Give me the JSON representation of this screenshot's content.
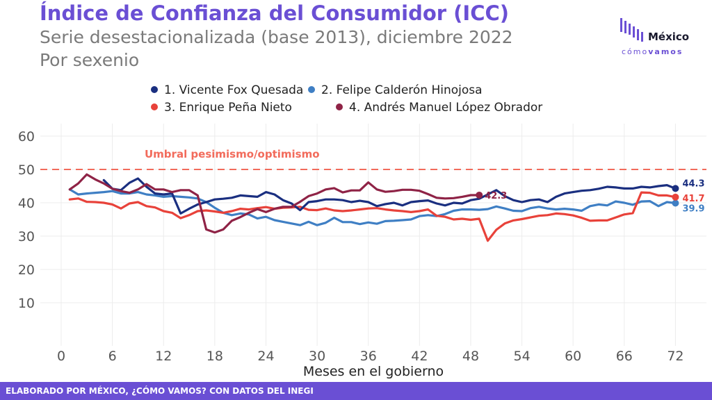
{
  "header": {
    "title": "Índice de Confianza del Consumidor (ICC)",
    "subtitle": "Serie desestacionalizada (base 2013), diciembre 2022",
    "subtitle2": "Por sexenio"
  },
  "logo": {
    "name": "México",
    "tag_part1": "cómo",
    "tag_part2": "vamos"
  },
  "footer": {
    "text": "ELABORADO POR MÉXICO, ¿CÓMO VAMOS? CON DATOS DEL INEGI"
  },
  "colors": {
    "brand": "#6a4fd4",
    "fox": "#1a2f80",
    "calderon": "#3f7fc4",
    "pena": "#e8423a",
    "amlo": "#8f2346",
    "threshold": "#f26b5b"
  },
  "chart_data": {
    "type": "line",
    "xlabel": "Meses en el gobierno",
    "ylabel": "",
    "xlim": [
      0,
      75
    ],
    "ylim": [
      0,
      63
    ],
    "xticks": [
      0,
      6,
      12,
      18,
      24,
      30,
      36,
      42,
      48,
      54,
      60,
      66,
      72
    ],
    "yticks": [
      10,
      20,
      30,
      40,
      50,
      60
    ],
    "grid": true,
    "legend_position": "top",
    "threshold": {
      "value": 50,
      "label": "Umbral pesimismo/optimismo"
    },
    "series": [
      {
        "name": "1. Vicente Fox Quesada",
        "color": "#1a2f80",
        "x": [
          5,
          6,
          7,
          8,
          9,
          10,
          11,
          12,
          13,
          14,
          15,
          16,
          17,
          18,
          19,
          20,
          21,
          22,
          23,
          24,
          25,
          26,
          27,
          28,
          29,
          30,
          31,
          32,
          33,
          34,
          35,
          36,
          37,
          38,
          39,
          40,
          41,
          42,
          43,
          44,
          45,
          46,
          47,
          48,
          49,
          50,
          51,
          52,
          53,
          54,
          55,
          56,
          57,
          58,
          59,
          60,
          61,
          62,
          63,
          64,
          65,
          66,
          67,
          68,
          69,
          70,
          71,
          72
        ],
        "values": [
          46.8,
          44.2,
          43.8,
          46.0,
          47.3,
          44.8,
          42.8,
          42.5,
          42.8,
          36.8,
          38.2,
          39.5,
          40.2,
          41.0,
          41.2,
          41.5,
          42.2,
          42.0,
          41.8,
          43.2,
          42.5,
          40.8,
          39.8,
          37.8,
          40.2,
          40.5,
          41.0,
          41.0,
          40.8,
          40.2,
          40.6,
          40.2,
          39.0,
          39.6,
          40.0,
          39.2,
          40.2,
          40.5,
          40.7,
          39.8,
          39.2,
          40.0,
          39.8,
          40.8,
          41.2,
          42.5,
          43.8,
          42.0,
          40.8,
          40.2,
          40.8,
          41.0,
          40.2,
          41.8,
          42.8,
          43.2,
          43.6,
          43.8,
          44.2,
          44.8,
          44.6,
          44.3,
          44.3,
          44.8,
          44.6,
          45.0,
          45.3,
          44.3
        ]
      },
      {
        "name": "2. Felipe Calderón Hinojosa",
        "color": "#3f7fc4",
        "x": [
          1,
          2,
          3,
          4,
          5,
          6,
          7,
          8,
          9,
          10,
          11,
          12,
          13,
          14,
          15,
          16,
          17,
          18,
          19,
          20,
          21,
          22,
          23,
          24,
          25,
          26,
          27,
          28,
          29,
          30,
          31,
          32,
          33,
          34,
          35,
          36,
          37,
          38,
          39,
          40,
          41,
          42,
          43,
          44,
          45,
          46,
          47,
          48,
          49,
          50,
          51,
          52,
          53,
          54,
          55,
          56,
          57,
          58,
          59,
          60,
          61,
          62,
          63,
          64,
          65,
          66,
          67,
          68,
          69,
          70,
          71,
          72
        ],
        "values": [
          44.0,
          42.5,
          42.8,
          43.0,
          43.2,
          43.5,
          42.8,
          42.8,
          43.2,
          42.5,
          42.2,
          41.8,
          42.0,
          41.8,
          41.6,
          41.3,
          40.2,
          38.5,
          37.0,
          36.3,
          36.8,
          36.5,
          35.3,
          35.8,
          34.8,
          34.3,
          33.8,
          33.3,
          34.3,
          33.3,
          34.0,
          35.5,
          34.2,
          34.2,
          33.6,
          34.1,
          33.7,
          34.5,
          34.6,
          34.8,
          35.0,
          36.0,
          36.3,
          36.0,
          36.6,
          37.6,
          38.0,
          38.0,
          37.9,
          38.1,
          38.9,
          38.3,
          37.6,
          37.5,
          38.4,
          38.8,
          38.3,
          38.0,
          38.2,
          38.0,
          37.6,
          39.0,
          39.5,
          39.2,
          40.4,
          40.0,
          39.4,
          40.4,
          40.5,
          39.0,
          40.2,
          39.9
        ]
      },
      {
        "name": "3. Enrique Peña Nieto",
        "color": "#e8423a",
        "x": [
          1,
          2,
          3,
          4,
          5,
          6,
          7,
          8,
          9,
          10,
          11,
          12,
          13,
          14,
          15,
          16,
          17,
          18,
          19,
          20,
          21,
          22,
          23,
          24,
          25,
          26,
          27,
          28,
          29,
          30,
          31,
          32,
          33,
          34,
          35,
          36,
          37,
          38,
          39,
          40,
          41,
          42,
          43,
          44,
          45,
          46,
          47,
          48,
          49,
          50,
          51,
          52,
          53,
          54,
          55,
          56,
          57,
          58,
          59,
          60,
          61,
          62,
          63,
          64,
          65,
          66,
          67,
          68,
          69,
          70,
          71,
          72
        ],
        "values": [
          41.0,
          41.3,
          40.3,
          40.2,
          40.0,
          39.5,
          38.3,
          39.8,
          40.2,
          39.0,
          38.6,
          37.5,
          37.0,
          35.4,
          36.3,
          37.5,
          37.7,
          37.4,
          37.0,
          37.5,
          38.2,
          38.0,
          38.4,
          38.7,
          38.2,
          38.5,
          38.6,
          38.8,
          37.9,
          37.8,
          38.3,
          37.7,
          37.5,
          37.7,
          38.0,
          38.3,
          38.4,
          38.0,
          37.7,
          37.5,
          37.2,
          37.5,
          38.0,
          36.1,
          35.8,
          35.0,
          35.2,
          34.9,
          35.2,
          28.6,
          31.9,
          33.8,
          34.7,
          35.1,
          35.6,
          36.1,
          36.3,
          36.8,
          36.6,
          36.2,
          35.5,
          34.6,
          34.7,
          34.7,
          35.6,
          36.5,
          36.9,
          43.1,
          43.0,
          42.2,
          42.2,
          41.7
        ]
      },
      {
        "name": "4. Andrés Manuel López Obrador",
        "color": "#8f2346",
        "x": [
          1,
          2,
          3,
          4,
          5,
          6,
          7,
          8,
          9,
          10,
          11,
          12,
          13,
          14,
          15,
          16,
          17,
          18,
          19,
          20,
          21,
          22,
          23,
          24,
          25,
          26,
          27,
          28,
          29,
          30,
          31,
          32,
          33,
          34,
          35,
          36,
          37,
          38,
          39,
          40,
          41,
          42,
          43,
          44,
          45,
          46,
          47,
          48,
          49
        ],
        "values": [
          44.0,
          45.8,
          48.5,
          47.0,
          45.8,
          44.2,
          43.5,
          43.0,
          44.0,
          45.6,
          44.0,
          44.0,
          43.2,
          43.8,
          43.8,
          42.2,
          32.0,
          31.1,
          32.0,
          34.6,
          35.7,
          37.0,
          38.1,
          37.2,
          38.2,
          38.8,
          38.8,
          40.3,
          42.0,
          42.8,
          44.0,
          44.4,
          43.1,
          43.7,
          43.7,
          46.1,
          44.0,
          43.3,
          43.5,
          43.9,
          43.9,
          43.6,
          42.6,
          41.5,
          41.3,
          41.4,
          41.8,
          42.3,
          42.3
        ]
      }
    ],
    "end_labels": [
      {
        "series": 0,
        "label": "44.3"
      },
      {
        "series": 1,
        "label": "39.9"
      },
      {
        "series": 2,
        "label": "41.7"
      },
      {
        "series": 3,
        "label": "42.3"
      }
    ]
  }
}
